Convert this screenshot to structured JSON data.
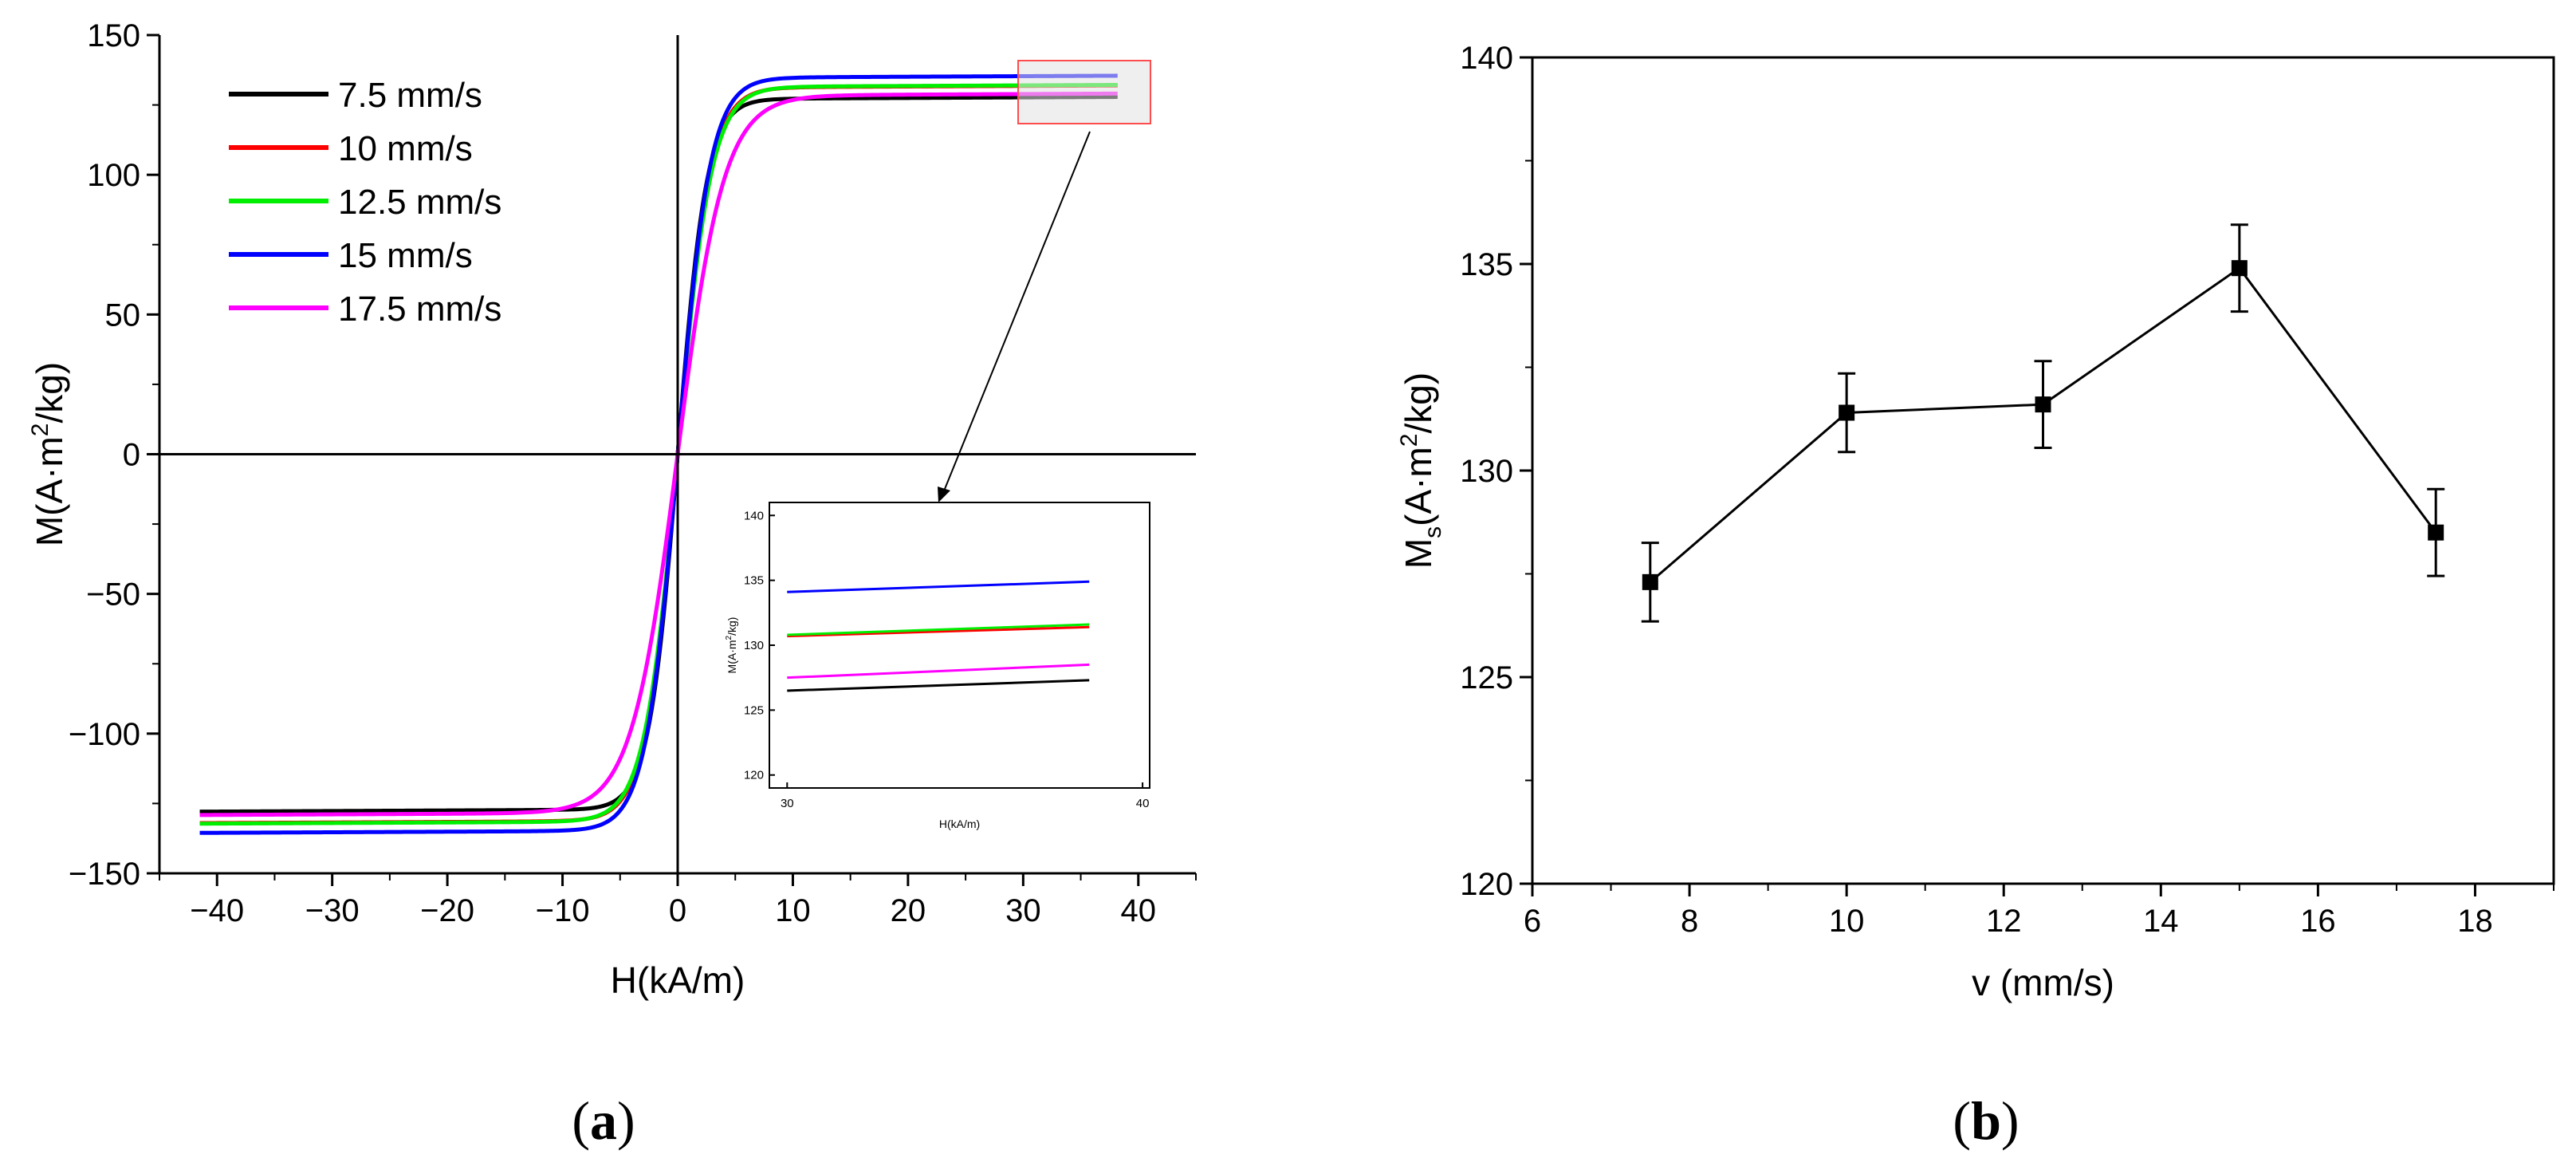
{
  "chart_data": [
    {
      "panel": "a",
      "type": "line",
      "title": "",
      "xlabel": "H(kA/m)",
      "ylabel": "M(A·m²/kg)",
      "ylabel_parts": {
        "main": "M(A·m",
        "sup": "2",
        "tail": "/kg)"
      },
      "xlim": [
        -45,
        45
      ],
      "ylim": [
        -150,
        150
      ],
      "xticks": [
        -40,
        -30,
        -20,
        -10,
        0,
        10,
        20,
        30,
        40
      ],
      "xtick_labels": [
        "−40",
        "−30",
        "−20",
        "−10",
        "0",
        "10",
        "20",
        "30",
        "40"
      ],
      "yticks": [
        -150,
        -100,
        -50,
        0,
        50,
        100,
        150
      ],
      "ytick_labels": [
        "−150",
        "−100",
        "−50",
        "0",
        "50",
        "100",
        "150"
      ],
      "legend_position": "top-left",
      "series": [
        {
          "name": "7.5 mm/s",
          "color": "#000000",
          "Ms": 127.3,
          "Hk": 2.5,
          "xmin": -41.5,
          "xmax": 38.2
        },
        {
          "name": "10 mm/s",
          "color": "#ff0000",
          "Ms": 131.4,
          "Hk": 2.8,
          "xmin": -41.5,
          "xmax": 38.2
        },
        {
          "name": "12.5 mm/s",
          "color": "#00ee00",
          "Ms": 131.6,
          "Hk": 2.9,
          "xmin": -41.5,
          "xmax": 38.2
        },
        {
          "name": "15 mm/s",
          "color": "#0000ff",
          "Ms": 134.9,
          "Hk": 2.8,
          "xmin": -41.5,
          "xmax": 38.2
        },
        {
          "name": "17.5 mm/s",
          "color": "#ff00ff",
          "Ms": 128.5,
          "Hk": 4.0,
          "xmin": -41.5,
          "xmax": 38.2
        }
      ],
      "zoom_region": {
        "x": [
          30,
          40
        ],
        "y": [
          122,
          137
        ]
      },
      "inset": {
        "xlabel": "H(kA/m)",
        "ylabel": "M(A·m²/kg)",
        "ylabel_parts": {
          "main": "M(A·m",
          "sup": "2",
          "tail": "/kg)"
        },
        "xlim": [
          29.5,
          40.2
        ],
        "ylim": [
          119,
          141
        ],
        "xticks": [
          30,
          40
        ],
        "xtick_labels": [
          "30",
          "40"
        ],
        "yticks": [
          120,
          125,
          130,
          135,
          140
        ],
        "ytick_labels": [
          "120",
          "125",
          "130",
          "135",
          "140"
        ],
        "x_range": [
          30,
          38.5
        ],
        "series": [
          {
            "name": "7.5 mm/s",
            "color": "#000000",
            "start": 126.5,
            "end": 127.3
          },
          {
            "name": "10 mm/s",
            "color": "#ff0000",
            "start": 130.7,
            "end": 131.4
          },
          {
            "name": "12.5 mm/s",
            "color": "#00ee00",
            "start": 130.8,
            "end": 131.6
          },
          {
            "name": "15 mm/s",
            "color": "#0000ff",
            "start": 134.1,
            "end": 134.9
          },
          {
            "name": "17.5 mm/s",
            "color": "#ff00ff",
            "start": 127.5,
            "end": 128.5
          }
        ]
      }
    },
    {
      "panel": "b",
      "type": "line",
      "title": "",
      "xlabel": "v (mm/s)",
      "ylabel": "Ms(A·m²/kg)",
      "ylabel_parts": {
        "main": "M",
        "sub": "s",
        "mid": "(A·m",
        "sup": "2",
        "tail": "/kg)"
      },
      "xlim": [
        6,
        19
      ],
      "ylim": [
        120,
        140
      ],
      "xticks": [
        6,
        8,
        10,
        12,
        14,
        16,
        18
      ],
      "xtick_labels": [
        "6",
        "8",
        "10",
        "12",
        "14",
        "16",
        "18"
      ],
      "yticks": [
        120,
        125,
        130,
        135,
        140
      ],
      "ytick_labels": [
        "120",
        "125",
        "130",
        "135",
        "140"
      ],
      "series": [
        {
          "name": "Ms",
          "color": "#000000",
          "x": [
            7.5,
            10,
            12.5,
            15,
            17.5
          ],
          "y": [
            127.3,
            131.4,
            131.6,
            134.9,
            128.5
          ],
          "error": [
            0.95,
            0.95,
            1.05,
            1.05,
            1.05
          ]
        }
      ]
    }
  ],
  "panel_labels": {
    "a": {
      "open": "(",
      "letter": "a",
      "close": ")"
    },
    "b": {
      "open": "(",
      "letter": "b",
      "close": ")"
    }
  }
}
